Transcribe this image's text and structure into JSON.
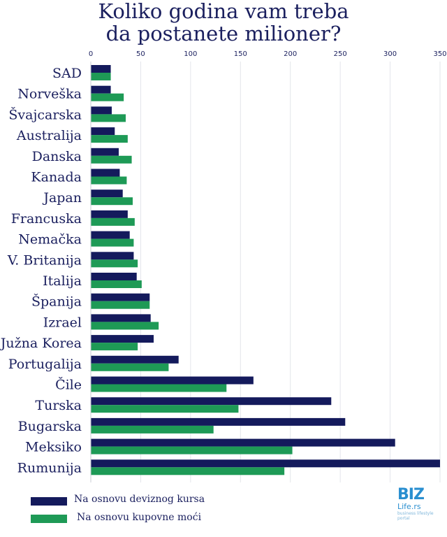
{
  "title": {
    "line1": "Koliko godina vam treba",
    "line2": "da postanete milioner?"
  },
  "chart_data": {
    "type": "bar",
    "orientation": "horizontal",
    "categories": [
      "SAD",
      "Norveška",
      "Švajcarska",
      "Australija",
      "Danska",
      "Kanada",
      "Japan",
      "Francuska",
      "Nemačka",
      "V. Britanija",
      "Italija",
      "Španija",
      "Izrael",
      "Južna Korea",
      "Portugalija",
      "Čile",
      "Turska",
      "Bugarska",
      "Meksiko",
      "Rumunija"
    ],
    "series": [
      {
        "name": "Na osnovu deviznog kursa",
        "color": "#141a5c",
        "values": [
          20,
          20,
          21,
          24,
          28,
          29,
          32,
          37,
          39,
          43,
          46,
          59,
          60,
          63,
          88,
          163,
          241,
          255,
          305,
          350
        ]
      },
      {
        "name": "Na osnovu kupovne moći",
        "color": "#1e9a56",
        "values": [
          20,
          33,
          35,
          37,
          41,
          36,
          42,
          44,
          43,
          47,
          51,
          59,
          68,
          47,
          78,
          136,
          148,
          123,
          202,
          194
        ]
      }
    ],
    "xticks": [
      0,
      50,
      100,
      150,
      200,
      250,
      300,
      350
    ],
    "xlim": [
      0,
      350
    ],
    "grid": true,
    "legend_position": "bottom-left"
  },
  "logo": {
    "main": "BIZ",
    "sub": "Life.rs",
    "tagline": "business lifestyle portal"
  }
}
